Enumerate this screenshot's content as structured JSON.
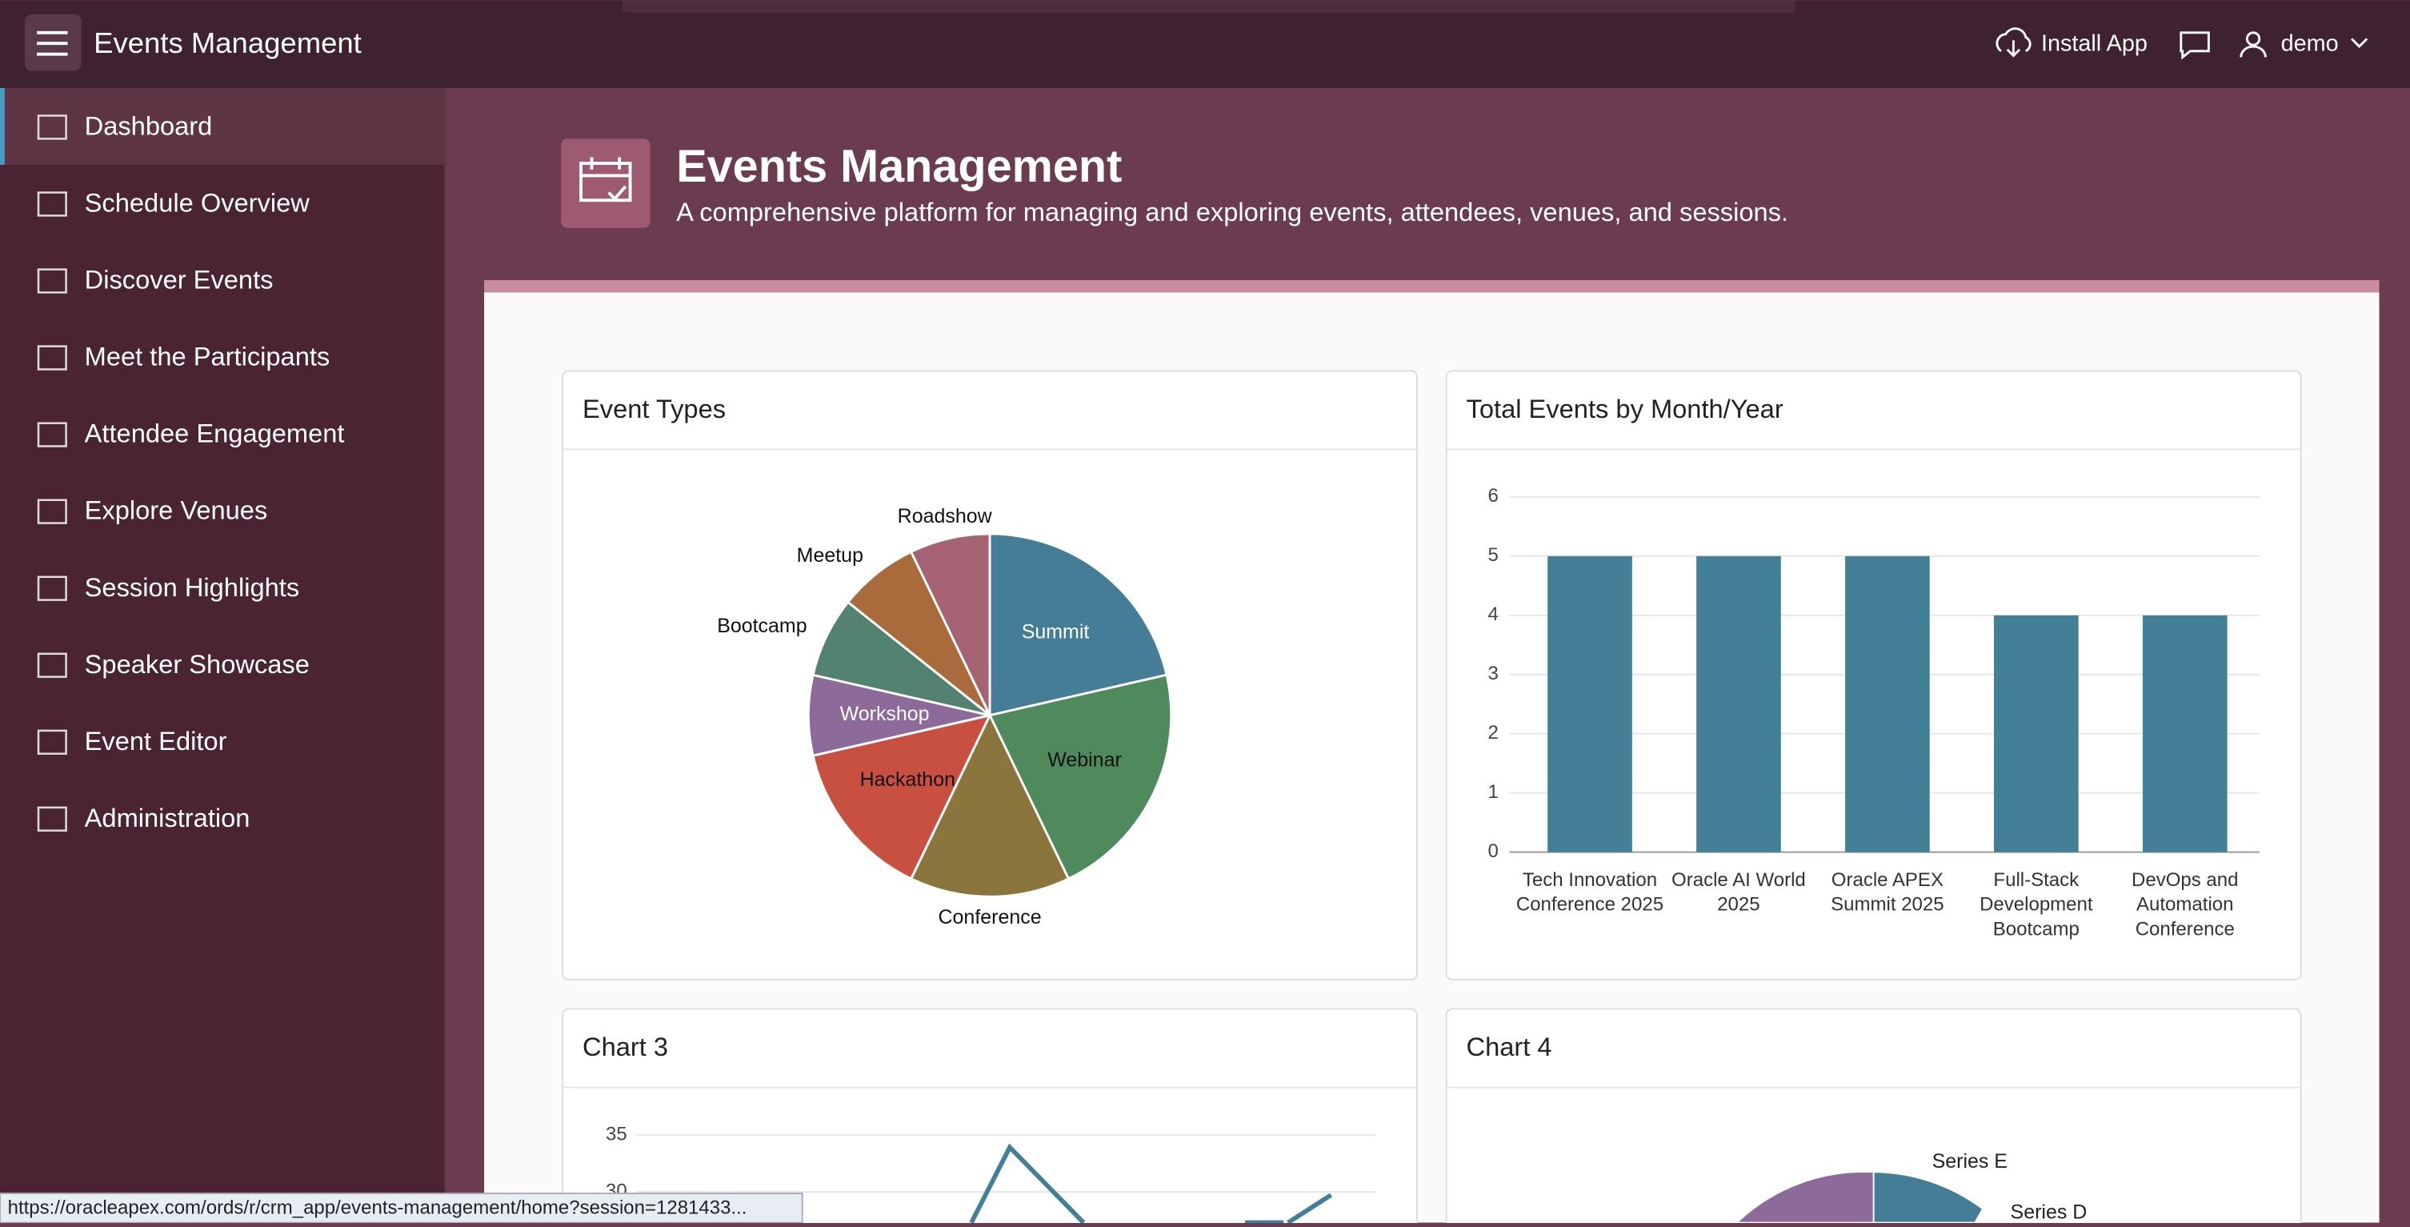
{
  "header": {
    "app_title": "Events Management",
    "install": "Install App",
    "user": "demo"
  },
  "sidebar": {
    "items": [
      "Dashboard",
      "Schedule Overview",
      "Discover Events",
      "Meet the Participants",
      "Attendee Engagement",
      "Explore Venues",
      "Session Highlights",
      "Speaker Showcase",
      "Event Editor",
      "Administration"
    ]
  },
  "page": {
    "title": "Events Management",
    "description": "A comprehensive platform for managing and exploring events, attendees, venues, and sessions."
  },
  "chart_data": [
    {
      "type": "pie",
      "title": "Event Types",
      "categories": [
        "Summit",
        "Webinar",
        "Conference",
        "Hackathon",
        "Workshop",
        "Bootcamp",
        "Meetup",
        "Roadshow"
      ],
      "values": [
        3,
        3,
        2,
        2,
        1,
        1,
        1,
        1
      ],
      "colors": [
        "#457d96",
        "#4f8a5c",
        "#8a763c",
        "#c85040",
        "#8c6a9a",
        "#538273",
        "#a96b3c",
        "#a56373"
      ]
    },
    {
      "type": "bar",
      "title": "Total Events by Month/Year",
      "categories": [
        "Tech Innovation Conference 2025",
        "Oracle AI World 2025",
        "Oracle APEX Summit 2025",
        "Full-Stack Development Bootcamp",
        "DevOps and Automation Conference"
      ],
      "values": [
        5,
        5,
        5,
        4,
        4
      ],
      "color": "#437f96",
      "ylim": [
        0,
        6
      ],
      "yticks": [
        0,
        1,
        2,
        3,
        4,
        5,
        6
      ],
      "grid": true
    },
    {
      "type": "line",
      "title": "Chart 3",
      "yticks": [
        30,
        35
      ],
      "grid": true
    },
    {
      "type": "pie",
      "title": "Chart 4",
      "categories": [
        "Series E",
        "Series D"
      ]
    }
  ],
  "status_url": "https://oracleapex.com/ords/r/crm_app/events-management/home?session=1281433..."
}
